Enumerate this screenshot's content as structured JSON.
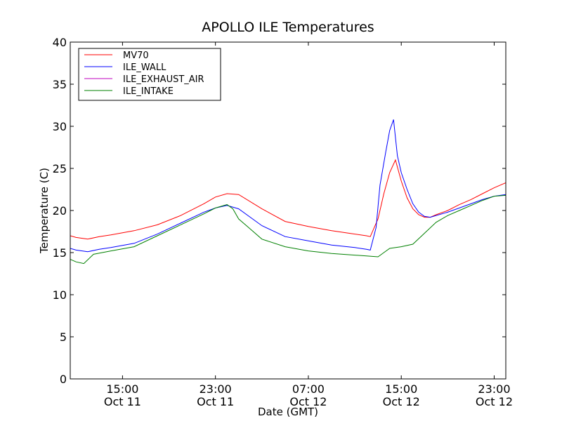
{
  "chart_data": {
    "type": "line",
    "title": "APOLLO ILE Temperatures",
    "xlabel": "Date (GMT)",
    "ylabel": "Temperature (C)",
    "x_unit": "hours",
    "xlim": [
      "Oct 11 10:30",
      "Oct 13 00:00"
    ],
    "ylim": [
      0,
      40
    ],
    "y_ticks": [
      0,
      5,
      10,
      15,
      20,
      25,
      30,
      35,
      40
    ],
    "x_ticks": [
      {
        "at": "Oct 11 15:00",
        "time": "15:00",
        "date": "Oct 11"
      },
      {
        "at": "Oct 11 23:00",
        "time": "23:00",
        "date": "Oct 11"
      },
      {
        "at": "Oct 12 07:00",
        "time": "07:00",
        "date": "Oct 12"
      },
      {
        "at": "Oct 12 15:00",
        "time": "15:00",
        "date": "Oct 12"
      },
      {
        "at": "Oct 12 23:00",
        "time": "23:00",
        "date": "Oct 12"
      }
    ],
    "legend_position": "top-left",
    "grid": false,
    "series": [
      {
        "name": "MV70",
        "color": "#ff0000",
        "points": [
          [
            "Oct 11 10:30",
            17.0
          ],
          [
            "Oct 11 11:00",
            16.8
          ],
          [
            "Oct 11 12:00",
            16.6
          ],
          [
            "Oct 11 13:00",
            16.9
          ],
          [
            "Oct 11 14:00",
            17.1
          ],
          [
            "Oct 11 16:00",
            17.6
          ],
          [
            "Oct 11 18:00",
            18.3
          ],
          [
            "Oct 11 20:00",
            19.4
          ],
          [
            "Oct 11 22:00",
            20.8
          ],
          [
            "Oct 11 23:00",
            21.6
          ],
          [
            "Oct 12 00:00",
            22.0
          ],
          [
            "Oct 12 01:00",
            21.9
          ],
          [
            "Oct 12 03:00",
            20.2
          ],
          [
            "Oct 12 05:00",
            18.7
          ],
          [
            "Oct 12 07:00",
            18.1
          ],
          [
            "Oct 12 09:00",
            17.6
          ],
          [
            "Oct 12 11:00",
            17.2
          ],
          [
            "Oct 12 12:00",
            17.0
          ],
          [
            "Oct 12 12:20",
            16.9
          ],
          [
            "Oct 12 13:00",
            19.0
          ],
          [
            "Oct 12 13:30",
            22.0
          ],
          [
            "Oct 12 14:00",
            24.5
          ],
          [
            "Oct 12 14:30",
            26.0
          ],
          [
            "Oct 12 15:00",
            23.5
          ],
          [
            "Oct 12 15:30",
            21.5
          ],
          [
            "Oct 12 16:00",
            20.2
          ],
          [
            "Oct 12 16:30",
            19.5
          ],
          [
            "Oct 12 17:00",
            19.2
          ],
          [
            "Oct 12 17:30",
            19.2
          ],
          [
            "Oct 12 18:00",
            19.5
          ],
          [
            "Oct 12 19:00",
            20.0
          ],
          [
            "Oct 12 20:00",
            20.7
          ],
          [
            "Oct 12 21:00",
            21.3
          ],
          [
            "Oct 12 22:00",
            22.0
          ],
          [
            "Oct 12 23:00",
            22.7
          ],
          [
            "Oct 13 00:00",
            23.3
          ]
        ]
      },
      {
        "name": "ILE_WALL",
        "color": "#0000ff",
        "points": [
          [
            "Oct 11 10:30",
            15.5
          ],
          [
            "Oct 11 11:00",
            15.3
          ],
          [
            "Oct 11 12:00",
            15.1
          ],
          [
            "Oct 11 13:00",
            15.4
          ],
          [
            "Oct 11 14:00",
            15.6
          ],
          [
            "Oct 11 16:00",
            16.1
          ],
          [
            "Oct 11 18:00",
            17.2
          ],
          [
            "Oct 11 20:00",
            18.5
          ],
          [
            "Oct 11 22:00",
            19.8
          ],
          [
            "Oct 11 23:00",
            20.3
          ],
          [
            "Oct 12 00:00",
            20.6
          ],
          [
            "Oct 12 01:00",
            20.2
          ],
          [
            "Oct 12 03:00",
            18.2
          ],
          [
            "Oct 12 05:00",
            16.9
          ],
          [
            "Oct 12 07:00",
            16.4
          ],
          [
            "Oct 12 09:00",
            15.9
          ],
          [
            "Oct 12 11:00",
            15.6
          ],
          [
            "Oct 12 12:00",
            15.4
          ],
          [
            "Oct 12 12:20",
            15.3
          ],
          [
            "Oct 12 12:50",
            18.0
          ],
          [
            "Oct 12 13:10",
            23.0
          ],
          [
            "Oct 12 13:40",
            27.0
          ],
          [
            "Oct 12 14:00",
            29.5
          ],
          [
            "Oct 12 14:20",
            30.8
          ],
          [
            "Oct 12 14:40",
            26.5
          ],
          [
            "Oct 12 15:00",
            24.5
          ],
          [
            "Oct 12 15:30",
            22.5
          ],
          [
            "Oct 12 16:00",
            20.8
          ],
          [
            "Oct 12 16:30",
            19.8
          ],
          [
            "Oct 12 17:00",
            19.3
          ],
          [
            "Oct 12 17:30",
            19.2
          ],
          [
            "Oct 12 18:00",
            19.4
          ],
          [
            "Oct 12 19:00",
            19.8
          ],
          [
            "Oct 12 20:00",
            20.3
          ],
          [
            "Oct 12 21:00",
            20.8
          ],
          [
            "Oct 12 22:00",
            21.3
          ],
          [
            "Oct 12 23:00",
            21.7
          ],
          [
            "Oct 13 00:00",
            21.9
          ]
        ]
      },
      {
        "name": "ILE_EXHAUST_AIR",
        "color": "#bf00bf",
        "points": []
      },
      {
        "name": "ILE_INTAKE",
        "color": "#008000",
        "points": [
          [
            "Oct 11 10:30",
            14.2
          ],
          [
            "Oct 11 11:00",
            13.9
          ],
          [
            "Oct 11 11:40",
            13.7
          ],
          [
            "Oct 11 12:30",
            14.8
          ],
          [
            "Oct 11 14:00",
            15.2
          ],
          [
            "Oct 11 16:00",
            15.7
          ],
          [
            "Oct 11 18:00",
            17.0
          ],
          [
            "Oct 11 20:00",
            18.3
          ],
          [
            "Oct 11 22:00",
            19.6
          ],
          [
            "Oct 11 23:00",
            20.3
          ],
          [
            "Oct 12 00:00",
            20.7
          ],
          [
            "Oct 12 00:30",
            20.2
          ],
          [
            "Oct 12 01:00",
            19.0
          ],
          [
            "Oct 12 02:00",
            17.8
          ],
          [
            "Oct 12 03:00",
            16.6
          ],
          [
            "Oct 12 05:00",
            15.7
          ],
          [
            "Oct 12 07:00",
            15.2
          ],
          [
            "Oct 12 09:00",
            14.9
          ],
          [
            "Oct 12 11:00",
            14.7
          ],
          [
            "Oct 12 12:00",
            14.6
          ],
          [
            "Oct 12 13:00",
            14.5
          ],
          [
            "Oct 12 13:30",
            15.0
          ],
          [
            "Oct 12 14:00",
            15.5
          ],
          [
            "Oct 12 15:00",
            15.7
          ],
          [
            "Oct 12 16:00",
            16.0
          ],
          [
            "Oct 12 17:00",
            17.3
          ],
          [
            "Oct 12 18:00",
            18.6
          ],
          [
            "Oct 12 19:00",
            19.4
          ],
          [
            "Oct 12 20:00",
            20.0
          ],
          [
            "Oct 12 21:00",
            20.6
          ],
          [
            "Oct 12 22:00",
            21.2
          ],
          [
            "Oct 12 23:00",
            21.7
          ],
          [
            "Oct 13 00:00",
            21.8
          ]
        ]
      }
    ]
  }
}
